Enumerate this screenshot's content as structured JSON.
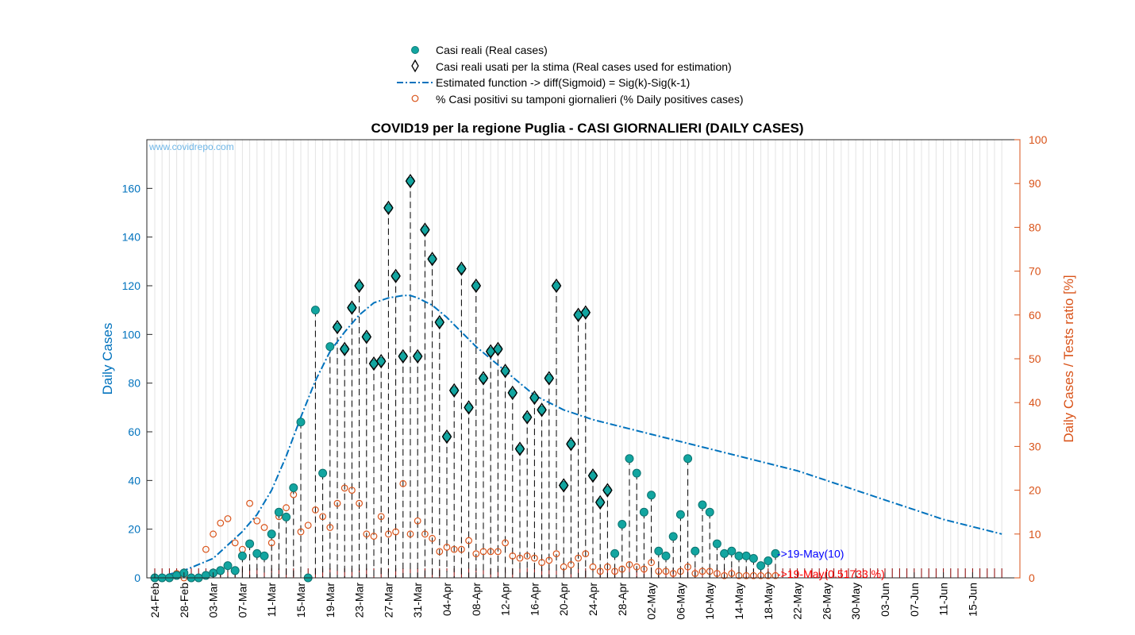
{
  "title": "COVID19 per la regione Puglia - CASI GIORNALIERI (DAILY CASES)",
  "watermark": "www.covidrepo.com",
  "colors": {
    "left_axis": "#0072BD",
    "right_axis": "#D95319",
    "marker_fill": "#12a5a0",
    "stem": "#000000",
    "tests_stem": "#8b0000",
    "annot_blue": "#0000ff",
    "annot_red": "#ff0000"
  },
  "legend": [
    {
      "key": "real",
      "label": "Casi reali (Real cases)"
    },
    {
      "key": "used",
      "label": "Casi reali usati per la stima (Real cases used for estimation)"
    },
    {
      "key": "fit",
      "label": "Estimated function -> diff(Sigmoid) = Sig(k)-Sig(k-1)"
    },
    {
      "key": "ratio",
      "label": "% Casi positivi su tamponi giornalieri (% Daily positives cases)"
    }
  ],
  "annotations": {
    "last_cases": "->19-May(10)",
    "last_ratio": "->19-May(0.51733 %)"
  },
  "chart_data": {
    "type": "scatter",
    "xlabel": "",
    "ylabel": "Daily Cases",
    "ylabel_right": "Daily Cases / Tests ratio [%]",
    "ylim": [
      0,
      180
    ],
    "ylim_right": [
      0,
      100
    ],
    "yticks": [
      0,
      20,
      40,
      60,
      80,
      100,
      120,
      140,
      160
    ],
    "yticks_right": [
      0,
      10,
      20,
      30,
      40,
      50,
      60,
      70,
      80,
      90,
      100
    ],
    "x_start": "24-Feb",
    "x_end_index": 116,
    "xtick_labels": [
      "24-Feb",
      "28-Feb",
      "03-Mar",
      "07-Mar",
      "11-Mar",
      "15-Mar",
      "19-Mar",
      "23-Mar",
      "27-Mar",
      "31-Mar",
      "04-Apr",
      "08-Apr",
      "12-Apr",
      "16-Apr",
      "20-Apr",
      "24-Apr",
      "28-Apr",
      "02-May",
      "06-May",
      "10-May",
      "14-May",
      "18-May",
      "22-May",
      "26-May",
      "30-May",
      "03-Jun",
      "07-Jun",
      "11-Jun",
      "15-Jun"
    ],
    "xtick_step_days": 4,
    "grid": true,
    "legend_position": "top",
    "series": [
      {
        "name": "Casi reali (Real cases)",
        "style": "filled-circle",
        "values": [
          0,
          0,
          0,
          1,
          2,
          0,
          0,
          1,
          2,
          3,
          5,
          3,
          9,
          14,
          10,
          9,
          18,
          27,
          25,
          37,
          64,
          0,
          110,
          43,
          95,
          103,
          94,
          111,
          120,
          99,
          88,
          89,
          152,
          124,
          91,
          163,
          91,
          143,
          131,
          105,
          58,
          77,
          127,
          70,
          120,
          82,
          93,
          94,
          85,
          76,
          53,
          66,
          74,
          69,
          82,
          120,
          38,
          55,
          108,
          109,
          42,
          31,
          36,
          10,
          22,
          49,
          43,
          27,
          34,
          11,
          9,
          17,
          26,
          49,
          11,
          30,
          27,
          14,
          10,
          11,
          9,
          9,
          8,
          5,
          7,
          10
        ]
      },
      {
        "name": "Casi reali usati per la stima (Real cases used for estimation)",
        "style": "open-diamond",
        "from_index": 25,
        "to_index": 62,
        "values": [
          103,
          94,
          111,
          120,
          99,
          88,
          89,
          152,
          124,
          91,
          163,
          91,
          143,
          131,
          105,
          58,
          77,
          127,
          70,
          120,
          82,
          93,
          94,
          85,
          76,
          53,
          66,
          74,
          69,
          82,
          120,
          38,
          55,
          108,
          109,
          42,
          31,
          36
        ]
      },
      {
        "name": "Estimated function -> diff(Sigmoid) = Sig(k)-Sig(k-1)",
        "style": "dash-dot",
        "x": [
          0,
          4,
          8,
          12,
          14,
          16,
          18,
          20,
          22,
          24,
          26,
          28,
          30,
          32,
          34,
          35,
          36,
          38,
          40,
          42,
          44,
          46,
          48,
          50,
          52,
          54,
          56,
          60,
          64,
          68,
          72,
          76,
          80,
          84,
          88,
          92,
          96,
          100,
          104,
          108,
          112,
          116
        ],
        "values": [
          0,
          3,
          8,
          19,
          26,
          36,
          50,
          66,
          81,
          93,
          101,
          108,
          113,
          115,
          116,
          116,
          115,
          112,
          107,
          101,
          95,
          90,
          85,
          80,
          75,
          72,
          69,
          65,
          62,
          59,
          56,
          53,
          50,
          47,
          44,
          40,
          36,
          32,
          28,
          24,
          21,
          18
        ]
      },
      {
        "name": "% Casi positivi su tamponi giornalieri (% Daily positives cases)",
        "style": "open-circle",
        "axis": "right",
        "values": [
          0,
          0,
          0,
          1,
          0,
          0,
          0,
          6.5,
          10,
          12.5,
          13.5,
          8,
          6.5,
          17,
          13,
          11.5,
          8,
          14,
          16,
          19,
          10.5,
          12,
          15.5,
          14,
          11.5,
          17,
          20.5,
          20,
          17,
          10,
          9.5,
          14,
          10,
          10.5,
          21.5,
          10,
          13,
          10,
          9,
          6,
          7,
          6.5,
          6.5,
          8.5,
          5.5,
          6,
          6,
          6,
          8,
          5,
          4.5,
          5,
          4.5,
          3.5,
          4,
          5.5,
          2.5,
          3,
          4.5,
          5.5,
          2.5,
          1.5,
          2.5,
          1.5,
          2,
          3,
          2.5,
          2,
          3.5,
          1.5,
          1.5,
          1,
          1.5,
          2.5,
          1,
          1.5,
          1.5,
          1,
          0.5,
          1,
          0.5,
          0.5,
          0.5,
          0.5,
          0.5,
          0.5173
        ]
      }
    ]
  }
}
